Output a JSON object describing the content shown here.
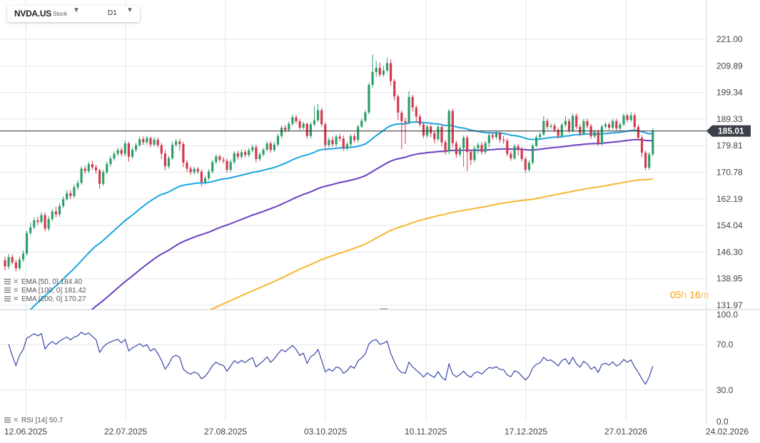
{
  "header": {
    "symbol": "NVDA.US",
    "type": "Stock",
    "timeframe": "D1",
    "countdown_hours": "05",
    "countdown_h_unit": "h",
    "countdown_minutes": "16",
    "countdown_m_unit": "m"
  },
  "colors": {
    "up": "#2e9e6a",
    "down": "#d23a4e",
    "ema50": "#1ba5e0",
    "ema100": "#6b3fc0",
    "ema200": "#f7b731",
    "rsi": "#3a47a8",
    "price_line": "#2b2b2b",
    "price_badge": "#3b4048",
    "grid": "#e3e6ea"
  },
  "chart_data": {
    "type": "candlestick",
    "price_axis": {
      "ticks": [
        "221.00",
        "209.89",
        "199.34",
        "189.33",
        "179.81",
        "170.78",
        "162.19",
        "154.04",
        "146.30",
        "138.95",
        "131.97"
      ],
      "scale": "log"
    },
    "current_price": "185.01",
    "date_axis": [
      "12.06.2025",
      "22.07.2025",
      "27.08.2025",
      "03.10.2025",
      "10.11.2025",
      "17.12.2025",
      "27.01.2026",
      "24.02.2026"
    ],
    "candles": [
      [
        144.0,
        142.3,
        145.0,
        141.2
      ],
      [
        142.3,
        144.9,
        145.8,
        141.5
      ],
      [
        144.9,
        143.4,
        145.6,
        142.8
      ],
      [
        143.4,
        141.8,
        144.2,
        140.9
      ],
      [
        141.8,
        144.2,
        145.0,
        141.3
      ],
      [
        144.2,
        145.9,
        146.8,
        143.6
      ],
      [
        145.9,
        151.8,
        152.5,
        145.3
      ],
      [
        151.8,
        153.5,
        154.9,
        151.2
      ],
      [
        153.5,
        155.6,
        156.4,
        152.9
      ],
      [
        155.6,
        155.1,
        156.7,
        154.2
      ],
      [
        155.1,
        157.2,
        158.0,
        154.6
      ],
      [
        157.2,
        153.1,
        157.9,
        152.3
      ],
      [
        153.1,
        156.0,
        156.8,
        152.4
      ],
      [
        156.0,
        158.3,
        159.1,
        155.2
      ],
      [
        158.3,
        157.4,
        159.8,
        156.5
      ],
      [
        157.4,
        160.0,
        160.9,
        156.6
      ],
      [
        160.0,
        162.1,
        163.0,
        159.3
      ],
      [
        162.1,
        164.0,
        164.9,
        161.6
      ],
      [
        164.0,
        163.1,
        164.9,
        162.2
      ],
      [
        163.1,
        165.9,
        166.8,
        162.4
      ],
      [
        165.9,
        167.3,
        168.2,
        165.0
      ],
      [
        167.3,
        172.0,
        172.8,
        166.7
      ],
      [
        172.0,
        171.2,
        173.0,
        170.3
      ],
      [
        171.2,
        173.5,
        174.3,
        170.5
      ],
      [
        173.5,
        172.4,
        174.6,
        171.6
      ],
      [
        172.4,
        171.4,
        173.3,
        170.3
      ],
      [
        171.4,
        167.0,
        171.9,
        165.4
      ],
      [
        167.0,
        170.8,
        171.6,
        166.3
      ],
      [
        170.8,
        173.5,
        174.4,
        170.1
      ],
      [
        173.5,
        175.4,
        176.3,
        172.7
      ],
      [
        175.4,
        177.0,
        177.8,
        174.6
      ],
      [
        177.0,
        178.3,
        179.1,
        176.2
      ],
      [
        178.3,
        177.0,
        179.2,
        176.1
      ],
      [
        177.0,
        180.6,
        181.5,
        176.3
      ],
      [
        180.6,
        176.0,
        181.2,
        174.3
      ],
      [
        176.0,
        178.4,
        179.2,
        175.3
      ],
      [
        178.4,
        180.0,
        180.8,
        177.6
      ],
      [
        180.0,
        182.1,
        182.9,
        179.4
      ],
      [
        182.1,
        181.0,
        183.1,
        180.1
      ],
      [
        181.0,
        182.5,
        183.3,
        180.2
      ],
      [
        182.5,
        180.2,
        183.0,
        179.3
      ],
      [
        180.2,
        181.9,
        182.8,
        179.5
      ],
      [
        181.9,
        180.0,
        182.6,
        179.1
      ],
      [
        180.0,
        177.1,
        180.8,
        175.2
      ],
      [
        177.1,
        172.8,
        178.3,
        171.4
      ],
      [
        172.8,
        175.5,
        176.3,
        172.0
      ],
      [
        175.5,
        180.1,
        181.2,
        175.0
      ],
      [
        180.1,
        181.3,
        182.2,
        179.4
      ],
      [
        181.3,
        180.4,
        182.3,
        178.1
      ],
      [
        180.4,
        174.0,
        181.1,
        172.5
      ],
      [
        174.0,
        172.0,
        174.9,
        170.8
      ],
      [
        172.0,
        170.8,
        172.8,
        169.9
      ],
      [
        170.8,
        171.9,
        172.6,
        170.0
      ],
      [
        171.9,
        171.0,
        172.5,
        170.2
      ],
      [
        171.0,
        167.6,
        171.7,
        166.1
      ],
      [
        167.6,
        168.8,
        169.6,
        166.8
      ],
      [
        168.8,
        171.0,
        171.8,
        168.1
      ],
      [
        171.0,
        174.2,
        174.9,
        170.3
      ],
      [
        174.2,
        176.1,
        176.8,
        173.5
      ],
      [
        176.1,
        175.0,
        176.8,
        174.1
      ],
      [
        175.0,
        174.6,
        175.9,
        173.7
      ],
      [
        174.6,
        171.6,
        175.4,
        170.7
      ],
      [
        171.6,
        174.2,
        175.1,
        170.9
      ],
      [
        174.2,
        177.2,
        177.9,
        173.5
      ],
      [
        177.2,
        176.0,
        178.1,
        175.1
      ],
      [
        176.0,
        177.6,
        178.6,
        175.3
      ],
      [
        177.6,
        176.6,
        178.4,
        175.8
      ],
      [
        176.6,
        178.2,
        179.0,
        175.9
      ],
      [
        178.2,
        179.3,
        180.1,
        177.5
      ],
      [
        179.3,
        175.2,
        180.2,
        174.1
      ],
      [
        175.2,
        176.8,
        177.5,
        174.5
      ],
      [
        176.8,
        178.4,
        179.1,
        176.1
      ],
      [
        178.4,
        180.6,
        181.3,
        177.8
      ],
      [
        180.6,
        178.3,
        181.4,
        177.4
      ],
      [
        178.3,
        180.2,
        181.1,
        177.6
      ],
      [
        180.2,
        183.2,
        184.1,
        179.6
      ],
      [
        183.2,
        186.2,
        187.0,
        182.4
      ],
      [
        186.2,
        185.4,
        187.1,
        184.4
      ],
      [
        185.4,
        187.6,
        188.4,
        184.7
      ],
      [
        187.6,
        190.0,
        191.0,
        186.8
      ],
      [
        190.0,
        188.5,
        190.8,
        187.6
      ],
      [
        188.5,
        186.2,
        189.3,
        185.3
      ],
      [
        186.2,
        187.6,
        188.4,
        185.4
      ],
      [
        187.6,
        183.2,
        188.0,
        182.2
      ],
      [
        183.2,
        187.4,
        188.2,
        182.3
      ],
      [
        187.4,
        188.9,
        194.2,
        186.6
      ],
      [
        188.9,
        192.6,
        195.0,
        188.2
      ],
      [
        192.6,
        187.4,
        193.5,
        186.5
      ],
      [
        187.4,
        180.0,
        188.2,
        178.3
      ],
      [
        180.0,
        181.8,
        182.6,
        179.2
      ],
      [
        181.8,
        180.3,
        183.0,
        179.4
      ],
      [
        180.3,
        183.0,
        183.8,
        179.5
      ],
      [
        183.0,
        182.3,
        184.1,
        181.4
      ],
      [
        182.3,
        178.9,
        183.4,
        178.0
      ],
      [
        178.9,
        180.3,
        181.2,
        178.1
      ],
      [
        180.3,
        183.1,
        183.9,
        179.4
      ],
      [
        183.1,
        181.8,
        184.2,
        180.9
      ],
      [
        181.8,
        186.6,
        187.3,
        180.8
      ],
      [
        186.6,
        188.7,
        189.6,
        186.0
      ],
      [
        188.7,
        191.8,
        192.6,
        188.1
      ],
      [
        191.8,
        202.3,
        203.2,
        191.1
      ],
      [
        202.3,
        207.4,
        214.5,
        201.2
      ],
      [
        207.4,
        209.1,
        211.8,
        205.5
      ],
      [
        209.1,
        206.3,
        211.2,
        205.4
      ],
      [
        206.3,
        208.0,
        209.8,
        205.5
      ],
      [
        208.0,
        211.0,
        213.2,
        207.2
      ],
      [
        211.0,
        203.8,
        212.6,
        202.0
      ],
      [
        203.8,
        197.8,
        204.6,
        196.2
      ],
      [
        197.8,
        191.7,
        198.7,
        188.9
      ],
      [
        191.7,
        188.6,
        192.5,
        178.6
      ],
      [
        188.6,
        188.0,
        189.8,
        180.5
      ],
      [
        188.0,
        197.6,
        199.8,
        187.4
      ],
      [
        197.6,
        193.6,
        198.5,
        192.1
      ],
      [
        193.6,
        190.2,
        194.4,
        188.3
      ],
      [
        190.2,
        187.4,
        191.1,
        186.5
      ],
      [
        187.4,
        183.4,
        188.2,
        182.5
      ],
      [
        183.4,
        186.6,
        187.3,
        182.6
      ],
      [
        186.6,
        184.2,
        187.4,
        182.8
      ],
      [
        184.2,
        182.1,
        185.0,
        180.6
      ],
      [
        182.1,
        186.5,
        187.2,
        181.4
      ],
      [
        186.5,
        181.0,
        187.3,
        179.6
      ],
      [
        181.0,
        177.8,
        181.9,
        176.8
      ],
      [
        177.8,
        192.3,
        193.0,
        176.9
      ],
      [
        192.3,
        180.7,
        193.1,
        179.1
      ],
      [
        180.7,
        176.8,
        181.6,
        175.6
      ],
      [
        176.8,
        178.9,
        179.8,
        176.0
      ],
      [
        178.9,
        182.6,
        183.4,
        172.6
      ],
      [
        182.6,
        177.6,
        183.5,
        171.1
      ],
      [
        177.6,
        174.9,
        178.3,
        173.3
      ],
      [
        174.9,
        178.9,
        179.7,
        174.1
      ],
      [
        178.9,
        180.1,
        180.9,
        177.1
      ],
      [
        180.1,
        177.6,
        181.1,
        176.7
      ],
      [
        177.6,
        180.7,
        181.4,
        176.9
      ],
      [
        180.7,
        183.5,
        184.3,
        179.1
      ],
      [
        183.5,
        182.8,
        184.4,
        181.9
      ],
      [
        182.8,
        184.2,
        185.1,
        182.1
      ],
      [
        184.2,
        181.9,
        185.0,
        180.8
      ],
      [
        181.9,
        181.6,
        183.2,
        180.5
      ],
      [
        181.6,
        177.0,
        182.3,
        176.1
      ],
      [
        177.0,
        175.5,
        177.9,
        174.7
      ],
      [
        175.5,
        179.6,
        180.4,
        174.8
      ],
      [
        179.6,
        178.4,
        180.5,
        176.4
      ],
      [
        178.4,
        175.2,
        179.3,
        174.3
      ],
      [
        175.2,
        171.6,
        176.0,
        170.6
      ],
      [
        171.6,
        174.0,
        174.8,
        170.9
      ],
      [
        174.0,
        179.8,
        180.6,
        173.4
      ],
      [
        179.8,
        182.8,
        183.5,
        179.2
      ],
      [
        182.8,
        183.8,
        184.5,
        182.1
      ],
      [
        183.8,
        188.6,
        190.5,
        183.2
      ],
      [
        188.6,
        186.5,
        189.5,
        185.6
      ],
      [
        186.5,
        186.9,
        187.7,
        185.8
      ],
      [
        186.9,
        185.4,
        187.8,
        184.5
      ],
      [
        185.4,
        183.2,
        186.3,
        182.3
      ],
      [
        183.2,
        187.2,
        187.9,
        182.5
      ],
      [
        187.2,
        188.6,
        190.4,
        186.4
      ],
      [
        188.6,
        185.2,
        189.5,
        184.3
      ],
      [
        185.2,
        190.5,
        191.3,
        184.5
      ],
      [
        190.5,
        186.5,
        191.4,
        185.6
      ],
      [
        186.5,
        184.1,
        187.4,
        183.2
      ],
      [
        184.1,
        188.6,
        189.4,
        183.4
      ],
      [
        188.6,
        186.8,
        189.5,
        185.9
      ],
      [
        186.8,
        183.1,
        187.6,
        182.2
      ],
      [
        183.1,
        184.7,
        185.5,
        182.4
      ],
      [
        184.7,
        180.6,
        185.6,
        179.7
      ],
      [
        180.6,
        186.6,
        187.3,
        179.9
      ],
      [
        186.6,
        187.4,
        188.2,
        185.9
      ],
      [
        187.4,
        186.2,
        188.1,
        185.3
      ],
      [
        186.2,
        188.6,
        189.4,
        185.5
      ],
      [
        188.6,
        185.9,
        189.5,
        185.0
      ],
      [
        185.9,
        187.4,
        188.2,
        185.2
      ],
      [
        187.4,
        190.6,
        191.4,
        186.7
      ],
      [
        190.6,
        189.0,
        191.4,
        188.1
      ],
      [
        189.0,
        190.7,
        192.0,
        188.3
      ],
      [
        190.7,
        186.4,
        191.5,
        185.5
      ],
      [
        186.4,
        182.6,
        187.3,
        181.7
      ],
      [
        182.6,
        177.4,
        183.5,
        175.8
      ],
      [
        177.4,
        172.3,
        178.2,
        171.5
      ],
      [
        172.3,
        176.8,
        177.6,
        171.6
      ],
      [
        176.8,
        185.0,
        186.0,
        176.1
      ]
    ],
    "ema": [
      {
        "label": "EMA [50, 0]",
        "value": "184.40",
        "color_key": "ema50"
      },
      {
        "label": "EMA [100, 0]",
        "value": "181.42",
        "color_key": "ema100"
      },
      {
        "label": "EMA [200, 0]",
        "value": "170.27",
        "color_key": "ema200"
      }
    ],
    "rsi": {
      "label": "RSI [14]",
      "value": "50.7",
      "ticks": [
        "100.0",
        "70.0",
        "30.0",
        "0.0"
      ],
      "ylim": [
        0,
        100
      ]
    }
  }
}
